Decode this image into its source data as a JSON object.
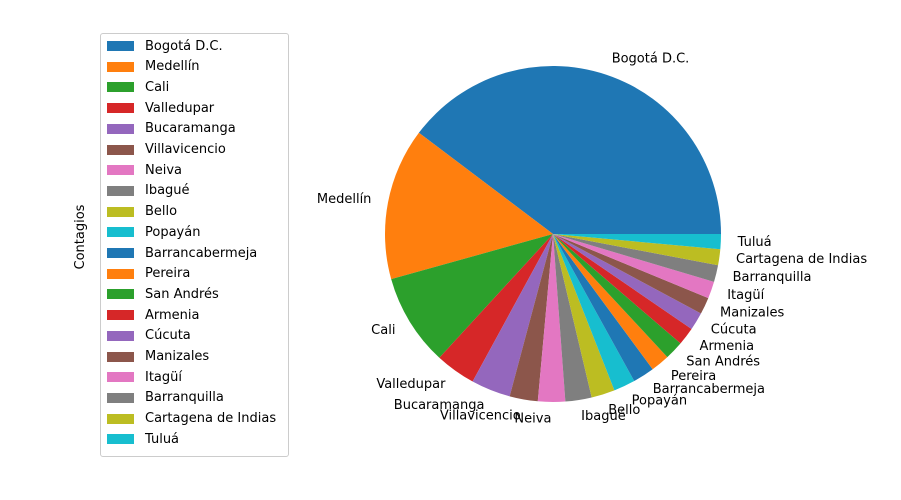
{
  "chart_data": {
    "type": "pie",
    "ylabel": "Contagios",
    "categories": [
      "Bogotá D.C.",
      "Medellín",
      "Cali",
      "Valledupar",
      "Bucaramanga",
      "Villavicencio",
      "Neiva",
      "Ibagué",
      "Bello",
      "Popayán",
      "Barrancabermeja",
      "Pereira",
      "San Andrés",
      "Armenia",
      "Cúcuta",
      "Manizales",
      "Itagüí",
      "Barranquilla",
      "Cartagena de Indias",
      "Tuluá"
    ],
    "values": [
      44.0,
      16.2,
      9.8,
      4.3,
      4.2,
      3.0,
      2.9,
      2.8,
      2.5,
      2.3,
      2.3,
      2.0,
      2.0,
      1.9,
      1.9,
      1.8,
      1.8,
      1.8,
      1.7,
      1.6
    ],
    "colors": [
      "#1f77b4",
      "#ff7f0e",
      "#2ca02c",
      "#d62728",
      "#9467bd",
      "#8c564b",
      "#e377c2",
      "#7f7f7f",
      "#bcbd22",
      "#17becf",
      "#1f77b4",
      "#ff7f0e",
      "#2ca02c",
      "#d62728",
      "#9467bd",
      "#8c564b",
      "#e377c2",
      "#7f7f7f",
      "#bcbd22",
      "#17becf"
    ],
    "legend": "left"
  }
}
